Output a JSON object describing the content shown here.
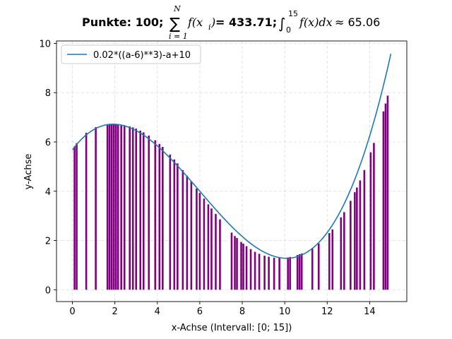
{
  "chart_data": {
    "type": "bar",
    "title": {
      "prefix": "Punkte: 100;",
      "sum_symbol": "∑",
      "sum_upper": "N",
      "sum_lower": "i = 1",
      "sum_body": "f(x",
      "sum_body_sub": "i",
      "sum_body_close": ")",
      "sum_result": "= 433.71;",
      "int_symbol": "∫",
      "int_upper": "15",
      "int_lower": "0",
      "int_body": "f(x)dx",
      "int_result": "≈ 65.06"
    },
    "xlabel": "x-Achse (Intervall: [0; 15])",
    "ylabel": "y-Achse",
    "xlim": [
      -0.75,
      15.75
    ],
    "ylim": [
      -0.48,
      10.1
    ],
    "xticks": [
      "0",
      "2",
      "4",
      "6",
      "8",
      "10",
      "12",
      "14"
    ],
    "yticks": [
      "0",
      "2",
      "4",
      "6",
      "8",
      "10"
    ],
    "grid": true,
    "legend": {
      "position": "top-left",
      "label": "0.02*((a-6)**3)-a+10"
    },
    "series": [
      {
        "kind": "line",
        "expression": "0.02*((a-6)**3)-a+10",
        "color": "#1f77b4",
        "x_range": [
          0,
          15
        ]
      },
      {
        "kind": "bar",
        "color": "#800080",
        "x": [
          0.1,
          0.2,
          0.65,
          1.1,
          1.65,
          1.75,
          1.85,
          1.95,
          2.05,
          2.15,
          2.3,
          2.45,
          2.7,
          2.85,
          3.0,
          3.2,
          3.35,
          3.6,
          3.9,
          4.1,
          4.25,
          4.6,
          4.8,
          4.95,
          5.2,
          5.4,
          5.6,
          5.85,
          6.0,
          6.2,
          6.4,
          6.55,
          6.75,
          6.95,
          7.5,
          7.65,
          7.75,
          7.95,
          8.05,
          8.2,
          8.4,
          8.6,
          8.8,
          9.05,
          9.25,
          9.5,
          9.75,
          10.15,
          10.25,
          10.6,
          10.7,
          10.8,
          11.3,
          11.6,
          12.1,
          12.25,
          12.65,
          12.8,
          13.1,
          13.3,
          13.4,
          13.55,
          13.75,
          14.05,
          14.2,
          14.65,
          14.75,
          14.85
        ],
        "values": [
          5.82,
          5.95,
          6.37,
          6.6,
          6.71,
          6.71,
          6.72,
          6.72,
          6.71,
          6.71,
          6.7,
          6.68,
          6.63,
          6.59,
          6.54,
          6.46,
          6.39,
          6.26,
          6.07,
          5.92,
          5.8,
          5.49,
          5.29,
          5.13,
          4.86,
          4.63,
          4.4,
          4.11,
          3.93,
          3.7,
          3.47,
          3.3,
          3.08,
          2.86,
          2.32,
          2.18,
          2.1,
          1.94,
          1.87,
          1.77,
          1.65,
          1.54,
          1.46,
          1.38,
          1.34,
          1.3,
          1.29,
          1.31,
          1.33,
          1.41,
          1.44,
          1.47,
          1.69,
          1.88,
          2.3,
          2.45,
          2.94,
          3.15,
          3.61,
          3.96,
          4.15,
          4.44,
          4.86,
          5.58,
          5.96,
          7.24,
          7.56,
          7.88
        ]
      }
    ]
  }
}
